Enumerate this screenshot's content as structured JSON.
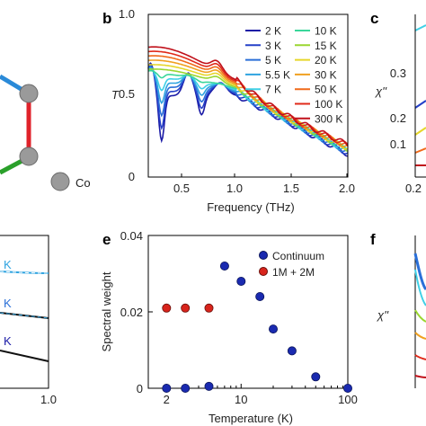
{
  "colors": {
    "T_2K": "#1a1aa6",
    "T_3K": "#2540c8",
    "T_5K": "#2a6fd8",
    "T_5p5K": "#2ea3e0",
    "T_7K": "#3fd0e6",
    "T_10K": "#3ad69a",
    "T_15K": "#9ad630",
    "T_20K": "#e6d62a",
    "T_30K": "#f0a020",
    "T_50K": "#f06a1a",
    "T_100K": "#e02a1a",
    "T_300K": "#c0101a",
    "continuum": "#1a2ab0",
    "mode": "#d8241c",
    "bond_blue": "#2a8ad8",
    "bond_red": "#e0222a",
    "bond_green": "#2aa02a",
    "atom": "#9a9a9a"
  },
  "panel_a": {
    "atom_label": "Co"
  },
  "panel_b": {
    "letter": "b",
    "ylabel": "T",
    "xlabel": "Frequency (THz)",
    "xticks": [
      "0.5",
      "1.0",
      "1.5",
      "2.0"
    ],
    "yticks": [
      "0",
      "0.5",
      "1.0"
    ],
    "legend": [
      "2 K",
      "3 K",
      "5 K",
      "5.5 K",
      "7 K",
      "10 K",
      "15 K",
      "20 K",
      "30 K",
      "50 K",
      "100 K",
      "300 K"
    ]
  },
  "panel_c": {
    "letter": "c",
    "ylabel": "χ''",
    "yticks": [
      "0.3",
      "0.2",
      "0.1"
    ],
    "xtick": "0.2"
  },
  "panel_d": {
    "labels": [
      "K",
      "K",
      "K"
    ],
    "xtick": "1.0"
  },
  "panel_e": {
    "letter": "e"
  },
  "panel_f": {
    "letter": "f",
    "ylabel": "χ''"
  },
  "chart_data": {
    "type": "scatter",
    "xlabel": "Temperature (K)",
    "ylabel": "Spectral weight",
    "xscale": "log",
    "xlim": [
      1.35,
      100
    ],
    "ylim": [
      0,
      0.04
    ],
    "xticks": [
      "2",
      "10",
      "100"
    ],
    "yticks": [
      "0",
      "0.02",
      "0.04"
    ],
    "legend_position": "top-right",
    "series": [
      {
        "name": "Continuum",
        "x": [
          2,
          3,
          5,
          7,
          10,
          15,
          20,
          30,
          50,
          100
        ],
        "y": [
          0.0,
          0.0,
          0.0005,
          0.032,
          0.028,
          0.024,
          0.0155,
          0.0098,
          0.003,
          0.0
        ]
      },
      {
        "name": "1M + 2M",
        "x": [
          2,
          3,
          5
        ],
        "y": [
          0.021,
          0.021,
          0.021
        ]
      }
    ]
  }
}
